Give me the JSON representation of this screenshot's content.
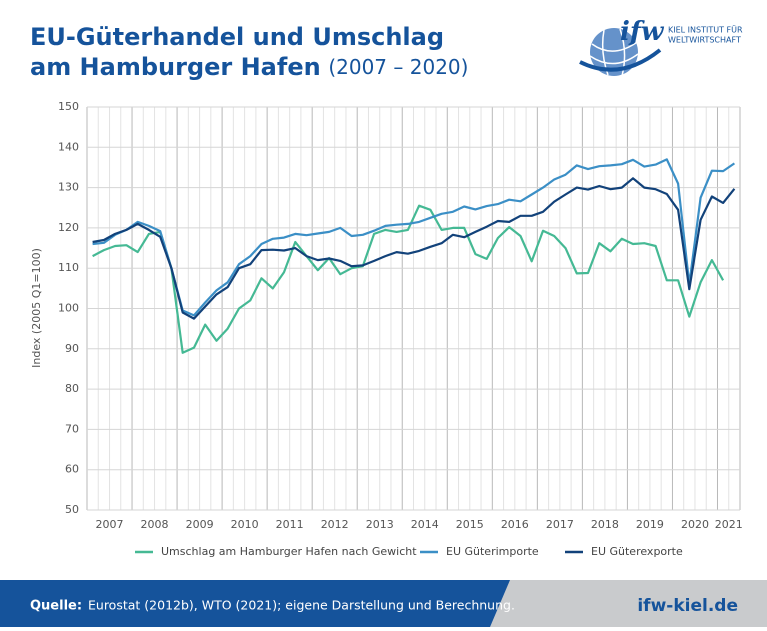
{
  "header": {
    "title_line1": "EU-Güterhandel und Umschlag",
    "title_line2": "am Hamburger Hafen",
    "title_period": "(2007 – 2020)",
    "logo": "ifw",
    "logo_line1": "KIEL INSTITUT FÜR",
    "logo_line2": "WELTWIRTSCHAFT"
  },
  "chart_data": {
    "type": "line",
    "y_label": "Index (2005 Q1=100)",
    "categories": [
      "2007",
      null,
      null,
      null,
      "2008",
      null,
      null,
      null,
      "2009",
      null,
      null,
      null,
      "2010",
      null,
      null,
      null,
      "2011",
      null,
      null,
      null,
      "2012",
      null,
      null,
      null,
      "2013",
      null,
      null,
      null,
      "2014",
      null,
      null,
      null,
      "2015",
      null,
      null,
      null,
      "2016",
      null,
      null,
      null,
      "2017",
      null,
      null,
      null,
      "2018",
      null,
      null,
      null,
      "2019",
      null,
      null,
      null,
      "2020",
      null,
      null,
      null,
      "2021",
      null
    ],
    "ylim": [
      50,
      150
    ],
    "yticks": [
      50,
      60,
      70,
      80,
      90,
      100,
      110,
      120,
      130,
      140,
      150
    ],
    "grid": true,
    "series": [
      {
        "name": "Umschlag am Hamburger Hafen nach Gewicht",
        "color": "#45b994",
        "values": [
          113,
          114.5,
          115.5,
          115.7,
          114,
          118.5,
          119,
          110,
          89,
          90.3,
          96,
          92,
          95,
          100,
          102,
          107.5,
          105,
          109,
          116.5,
          113,
          109.5,
          112.5,
          108.5,
          110,
          110.5,
          118.5,
          119.5,
          119,
          119.5,
          125.5,
          124.5,
          119.5,
          120,
          120,
          113.5,
          112.3,
          117.5,
          120.2,
          118,
          111.7,
          119.3,
          118,
          115,
          108.7,
          108.8,
          116.2,
          114.2,
          117.3,
          116,
          116.2,
          115.5,
          107,
          107,
          98,
          106.5,
          112,
          107,
          null
        ]
      },
      {
        "name": "EU Güterimporte",
        "color": "#3b8fc6",
        "values": [
          116,
          116.3,
          118.3,
          119.5,
          121.5,
          120.5,
          119.2,
          110,
          99.5,
          98.3,
          101.5,
          104.5,
          106.5,
          111,
          113,
          116,
          117.3,
          117.6,
          118.5,
          118.2,
          118.6,
          119,
          120,
          118,
          118.3,
          119.3,
          120.5,
          120.8,
          121,
          121.5,
          122.5,
          123.5,
          124,
          125.3,
          124.6,
          125.4,
          125.9,
          127,
          126.6,
          128.3,
          130,
          132,
          133.2,
          135.5,
          134.6,
          135.3,
          135.5,
          135.8,
          136.9,
          135.2,
          135.7,
          137,
          131,
          106,
          127.5,
          134.2,
          134.1,
          136
        ]
      },
      {
        "name": "EU Güterexporte",
        "color": "#12427a",
        "values": [
          116.5,
          117,
          118.5,
          119.5,
          121,
          119.5,
          117.8,
          110,
          99,
          97.5,
          100.5,
          103.5,
          105.3,
          110,
          111,
          114.5,
          114.6,
          114.4,
          115,
          113,
          112,
          112.4,
          111.8,
          110.5,
          110.7,
          111.8,
          113,
          114,
          113.6,
          114.3,
          115.3,
          116.2,
          118.3,
          117.7,
          119,
          120.3,
          121.7,
          121.5,
          123,
          123,
          124,
          126.5,
          128.3,
          130,
          129.5,
          130.4,
          129.6,
          130,
          132.3,
          130,
          129.6,
          128.4,
          124.5,
          104.8,
          122,
          127.8,
          126.2,
          129.7
        ]
      }
    ]
  },
  "footer": {
    "source_label": "Quelle:",
    "source_text": "Eurostat (2012b), WTO (2021); eigene Darstellung und Berechnung.",
    "url": "ifw-kiel.de"
  }
}
